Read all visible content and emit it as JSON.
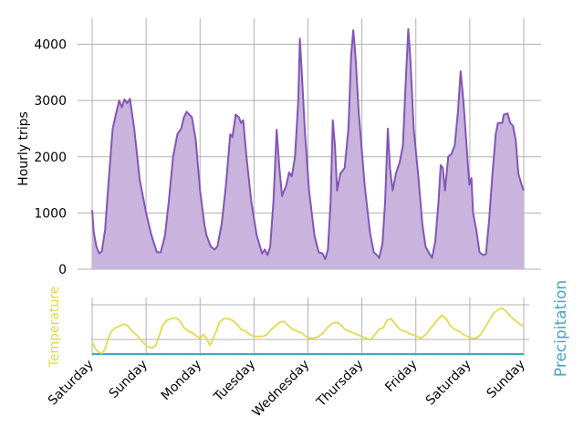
{
  "chart_data": [
    {
      "type": "area",
      "title": "",
      "xlabel": "",
      "ylabel": "Hourly trips",
      "ylim": [
        0,
        4500
      ],
      "yticks": [
        0,
        1000,
        2000,
        3000,
        4000
      ],
      "xlim": [
        0,
        8
      ],
      "day_ticks": [
        "Saturday",
        "Sunday",
        "Monday",
        "Tuesday",
        "Wednesday",
        "Thursday",
        "Friday",
        "Saturday",
        "Sunday"
      ],
      "grid": true,
      "fill_color": "#c8b4dc",
      "line_color": "#8256b6",
      "series": [
        {
          "name": "Hourly trips",
          "points": [
            [
              0.0,
              1050
            ],
            [
              0.03,
              650
            ],
            [
              0.08,
              400
            ],
            [
              0.13,
              280
            ],
            [
              0.18,
              320
            ],
            [
              0.24,
              700
            ],
            [
              0.3,
              1500
            ],
            [
              0.38,
              2500
            ],
            [
              0.5,
              3000
            ],
            [
              0.55,
              2880
            ],
            [
              0.6,
              3020
            ],
            [
              0.65,
              2950
            ],
            [
              0.7,
              3030
            ],
            [
              0.78,
              2500
            ],
            [
              0.88,
              1600
            ],
            [
              1.0,
              1000
            ],
            [
              1.1,
              600
            ],
            [
              1.2,
              300
            ],
            [
              1.27,
              300
            ],
            [
              1.35,
              600
            ],
            [
              1.42,
              1200
            ],
            [
              1.5,
              2000
            ],
            [
              1.58,
              2400
            ],
            [
              1.65,
              2500
            ],
            [
              1.7,
              2700
            ],
            [
              1.75,
              2800
            ],
            [
              1.85,
              2700
            ],
            [
              1.92,
              2300
            ],
            [
              2.0,
              1400
            ],
            [
              2.08,
              800
            ],
            [
              2.12,
              600
            ],
            [
              2.2,
              400
            ],
            [
              2.27,
              350
            ],
            [
              2.32,
              400
            ],
            [
              2.4,
              800
            ],
            [
              2.48,
              1500
            ],
            [
              2.56,
              2400
            ],
            [
              2.6,
              2350
            ],
            [
              2.66,
              2750
            ],
            [
              2.72,
              2700
            ],
            [
              2.76,
              2600
            ],
            [
              2.8,
              2650
            ],
            [
              2.86,
              2000
            ],
            [
              2.95,
              1200
            ],
            [
              3.05,
              600
            ],
            [
              3.15,
              280
            ],
            [
              3.2,
              350
            ],
            [
              3.25,
              250
            ],
            [
              3.3,
              400
            ],
            [
              3.36,
              1200
            ],
            [
              3.42,
              2480
            ],
            [
              3.47,
              1800
            ],
            [
              3.52,
              1300
            ],
            [
              3.6,
              1500
            ],
            [
              3.65,
              1720
            ],
            [
              3.7,
              1650
            ],
            [
              3.76,
              2000
            ],
            [
              3.82,
              3000
            ],
            [
              3.85,
              4100
            ],
            [
              3.88,
              3600
            ],
            [
              3.94,
              2500
            ],
            [
              4.02,
              1400
            ],
            [
              4.12,
              600
            ],
            [
              4.2,
              300
            ],
            [
              4.27,
              280
            ],
            [
              4.32,
              180
            ],
            [
              4.37,
              350
            ],
            [
              4.42,
              1200
            ],
            [
              4.46,
              2650
            ],
            [
              4.5,
              2200
            ],
            [
              4.54,
              1400
            ],
            [
              4.6,
              1700
            ],
            [
              4.68,
              1800
            ],
            [
              4.75,
              2500
            ],
            [
              4.8,
              3800
            ],
            [
              4.84,
              4250
            ],
            [
              4.88,
              3800
            ],
            [
              4.94,
              2800
            ],
            [
              5.05,
              1500
            ],
            [
              5.15,
              650
            ],
            [
              5.22,
              300
            ],
            [
              5.28,
              250
            ],
            [
              5.32,
              200
            ],
            [
              5.38,
              450
            ],
            [
              5.43,
              1200
            ],
            [
              5.48,
              2500
            ],
            [
              5.52,
              1800
            ],
            [
              5.57,
              1400
            ],
            [
              5.63,
              1700
            ],
            [
              5.7,
              1900
            ],
            [
              5.76,
              2200
            ],
            [
              5.82,
              3500
            ],
            [
              5.86,
              4270
            ],
            [
              5.9,
              3700
            ],
            [
              5.96,
              2500
            ],
            [
              6.05,
              1600
            ],
            [
              6.12,
              800
            ],
            [
              6.18,
              400
            ],
            [
              6.25,
              280
            ],
            [
              6.3,
              200
            ],
            [
              6.36,
              500
            ],
            [
              6.42,
              1200
            ],
            [
              6.46,
              1850
            ],
            [
              6.5,
              1800
            ],
            [
              6.54,
              1400
            ],
            [
              6.6,
              2000
            ],
            [
              6.66,
              2050
            ],
            [
              6.72,
              2200
            ],
            [
              6.78,
              2800
            ],
            [
              6.83,
              3520
            ],
            [
              6.88,
              3000
            ],
            [
              6.94,
              2200
            ],
            [
              6.99,
              1500
            ],
            [
              7.03,
              1620
            ],
            [
              7.06,
              1000
            ],
            [
              7.12,
              700
            ],
            [
              7.18,
              300
            ],
            [
              7.25,
              250
            ],
            [
              7.3,
              270
            ],
            [
              7.36,
              900
            ],
            [
              7.42,
              1700
            ],
            [
              7.48,
              2400
            ],
            [
              7.52,
              2600
            ],
            [
              7.6,
              2600
            ],
            [
              7.63,
              2750
            ],
            [
              7.7,
              2770
            ],
            [
              7.75,
              2600
            ],
            [
              7.8,
              2550
            ],
            [
              7.85,
              2300
            ],
            [
              7.9,
              1700
            ],
            [
              7.96,
              1500
            ],
            [
              8.0,
              1400
            ]
          ]
        }
      ]
    },
    {
      "type": "line",
      "title": "",
      "xlim": [
        0,
        8
      ],
      "grid": true,
      "left_label": "Temperature",
      "left_label_color": "#e0d84a",
      "right_label": "Precipitation",
      "right_label_color": "#4aa3c8",
      "series": [
        {
          "name": "Temperature",
          "color": "#e3da4e",
          "points": [
            [
              0.0,
              7
            ],
            [
              0.06,
              3
            ],
            [
              0.12,
              1
            ],
            [
              0.18,
              0.5
            ],
            [
              0.24,
              3
            ],
            [
              0.3,
              9
            ],
            [
              0.36,
              13
            ],
            [
              0.44,
              15
            ],
            [
              0.52,
              16
            ],
            [
              0.58,
              17
            ],
            [
              0.66,
              16
            ],
            [
              0.74,
              13
            ],
            [
              0.82,
              11
            ],
            [
              0.9,
              8
            ],
            [
              0.96,
              6
            ],
            [
              1.04,
              4
            ],
            [
              1.12,
              3.5
            ],
            [
              1.18,
              5
            ],
            [
              1.24,
              10
            ],
            [
              1.3,
              16
            ],
            [
              1.38,
              19
            ],
            [
              1.46,
              20
            ],
            [
              1.54,
              20.5
            ],
            [
              1.62,
              19
            ],
            [
              1.7,
              15
            ],
            [
              1.78,
              13
            ],
            [
              1.86,
              12
            ],
            [
              1.94,
              10
            ],
            [
              2.0,
              9
            ],
            [
              2.06,
              11
            ],
            [
              2.12,
              9
            ],
            [
              2.18,
              5
            ],
            [
              2.22,
              7
            ],
            [
              2.3,
              13
            ],
            [
              2.36,
              18
            ],
            [
              2.44,
              20
            ],
            [
              2.52,
              20
            ],
            [
              2.6,
              19
            ],
            [
              2.68,
              17
            ],
            [
              2.76,
              14
            ],
            [
              2.84,
              13
            ],
            [
              2.92,
              11
            ],
            [
              3.0,
              10
            ],
            [
              3.08,
              10
            ],
            [
              3.16,
              10
            ],
            [
              3.24,
              11
            ],
            [
              3.32,
              14
            ],
            [
              3.4,
              16
            ],
            [
              3.48,
              18
            ],
            [
              3.56,
              18.5
            ],
            [
              3.64,
              16
            ],
            [
              3.72,
              14
            ],
            [
              3.8,
              13
            ],
            [
              3.88,
              12
            ],
            [
              3.96,
              10
            ],
            [
              4.04,
              9
            ],
            [
              4.12,
              9
            ],
            [
              4.2,
              10
            ],
            [
              4.28,
              12
            ],
            [
              4.36,
              15
            ],
            [
              4.44,
              17
            ],
            [
              4.52,
              18
            ],
            [
              4.6,
              17
            ],
            [
              4.68,
              14
            ],
            [
              4.76,
              13
            ],
            [
              4.84,
              12
            ],
            [
              4.92,
              11
            ],
            [
              5.0,
              10
            ],
            [
              5.08,
              9
            ],
            [
              5.16,
              8
            ],
            [
              5.24,
              11
            ],
            [
              5.32,
              14
            ],
            [
              5.4,
              15
            ],
            [
              5.46,
              19
            ],
            [
              5.54,
              20
            ],
            [
              5.62,
              17
            ],
            [
              5.7,
              14
            ],
            [
              5.78,
              13
            ],
            [
              5.86,
              12
            ],
            [
              5.94,
              11
            ],
            [
              6.02,
              10
            ],
            [
              6.1,
              9
            ],
            [
              6.18,
              11
            ],
            [
              6.26,
              14
            ],
            [
              6.34,
              17
            ],
            [
              6.42,
              20
            ],
            [
              6.48,
              22
            ],
            [
              6.56,
              20
            ],
            [
              6.64,
              16
            ],
            [
              6.72,
              14
            ],
            [
              6.8,
              13
            ],
            [
              6.88,
              11
            ],
            [
              6.96,
              10
            ],
            [
              7.04,
              9
            ],
            [
              7.12,
              9
            ],
            [
              7.2,
              11
            ],
            [
              7.28,
              15
            ],
            [
              7.36,
              19
            ],
            [
              7.44,
              23
            ],
            [
              7.52,
              25
            ],
            [
              7.6,
              26
            ],
            [
              7.68,
              24
            ],
            [
              7.76,
              21
            ],
            [
              7.84,
              19
            ],
            [
              7.92,
              17
            ],
            [
              8.0,
              16
            ]
          ]
        },
        {
          "name": "Precipitation",
          "color": "#4aa3c8",
          "points": [
            [
              0,
              0
            ],
            [
              8,
              0
            ]
          ]
        }
      ]
    }
  ]
}
